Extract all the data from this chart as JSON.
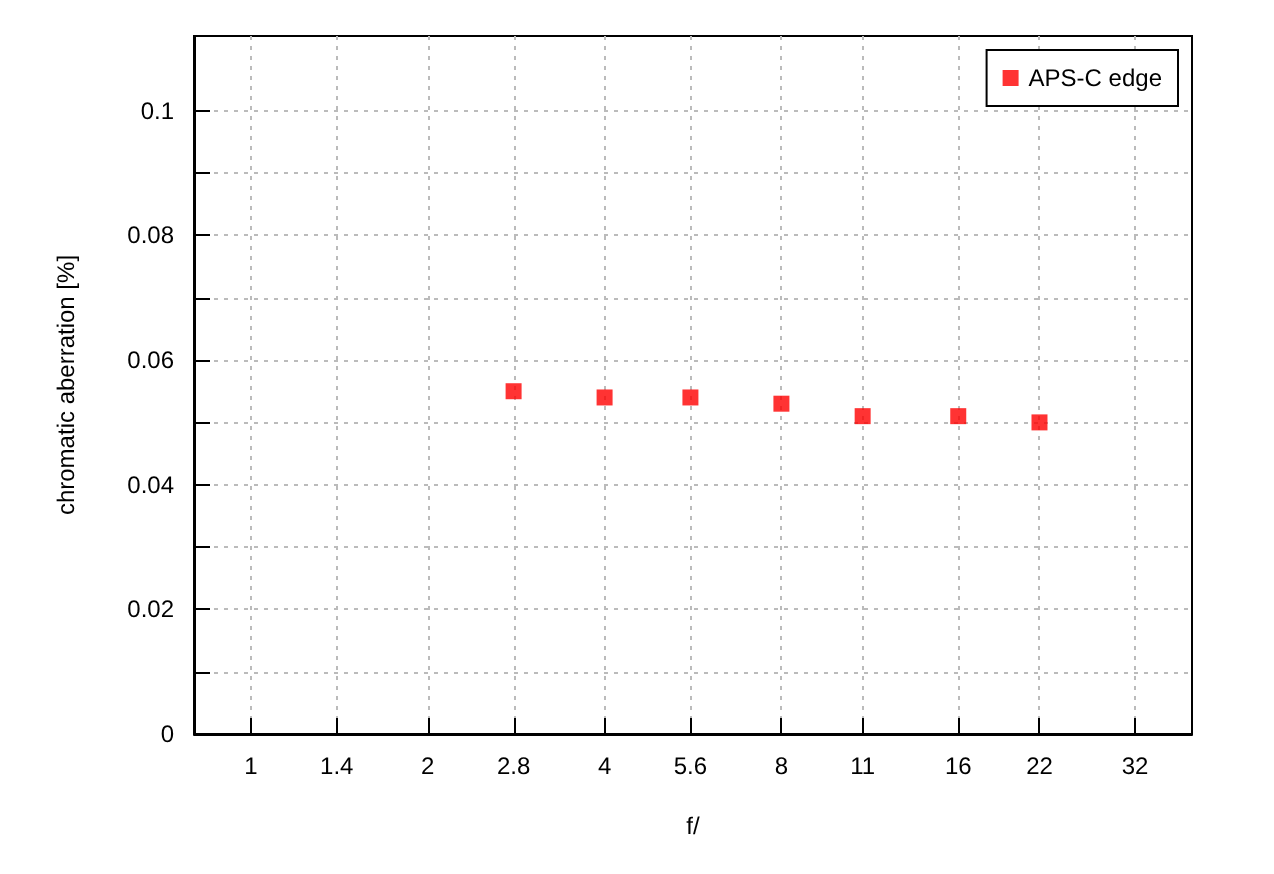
{
  "chart_data": {
    "type": "scatter",
    "xlabel": "f/",
    "ylabel": "chromatic aberration [%]",
    "log": "x",
    "xlim": [
      0.8,
      40
    ],
    "xticks": [
      1,
      1.4,
      2,
      2.8,
      4,
      5.6,
      8,
      11,
      16,
      22,
      32
    ],
    "ylim": [
      0,
      0.112
    ],
    "yticks": [
      0,
      {
        "value": 0.01,
        "label": null
      },
      0.02,
      {
        "value": 0.03,
        "label": null
      },
      0.04,
      {
        "value": 0.05,
        "label": null
      },
      0.06,
      {
        "value": 0.07,
        "label": null
      },
      0.08,
      {
        "value": 0.09,
        "label": null
      },
      0.1
    ],
    "x": [
      2.8,
      4,
      5.6,
      8,
      11,
      16,
      22
    ],
    "series": [
      {
        "name": "APS-C edge",
        "color": "#ff0000",
        "values": [
          0.055,
          0.054,
          0.054,
          0.053,
          0.051,
          0.051,
          0.05
        ]
      }
    ],
    "grid": true,
    "legend": "top right",
    "marker": "square"
  }
}
